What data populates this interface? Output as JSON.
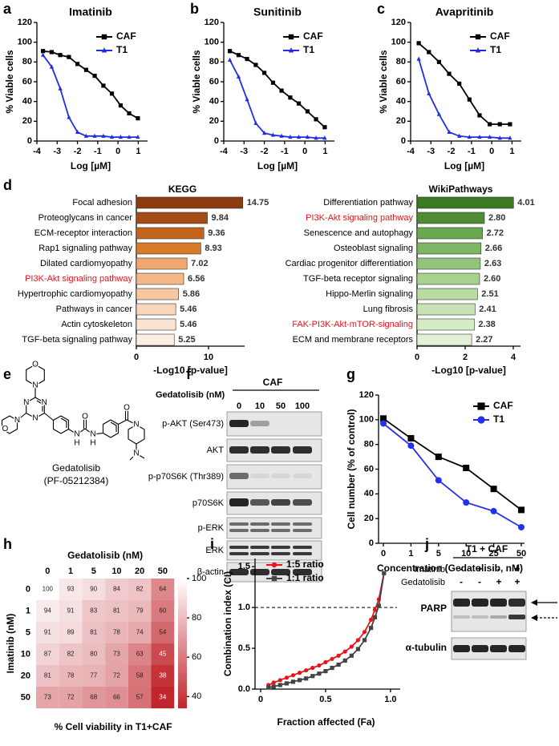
{
  "chart_data": [
    {
      "panel": "a",
      "type": "line",
      "title": "Imatinib",
      "xlabel": "Log [µM]",
      "ylabel": "% Viable cells",
      "x": [
        -3.7,
        -3.27,
        -2.85,
        -2.42,
        -2.0,
        -1.57,
        -1.15,
        -0.72,
        -0.3,
        0.13,
        0.55,
        0.98
      ],
      "xlim": [
        -4,
        1.3
      ],
      "xticks": [
        -4,
        -3,
        -2,
        -1,
        0,
        1
      ],
      "ylim": [
        0,
        120
      ],
      "yticks": [
        0,
        20,
        40,
        60,
        80,
        100,
        120
      ],
      "legend": "upper right",
      "series": [
        {
          "name": "CAF",
          "color": "#000000",
          "marker": "square",
          "values": [
            91,
            90,
            87,
            85,
            78,
            72,
            66,
            56,
            48,
            36,
            28,
            23
          ]
        },
        {
          "name": "T1",
          "color": "#1f2ee6",
          "marker": "triangle",
          "values": [
            87,
            75,
            53,
            24,
            9,
            5,
            5,
            5,
            4,
            4,
            4,
            4
          ]
        }
      ]
    },
    {
      "panel": "b",
      "type": "line",
      "title": "Sunitinib",
      "xlabel": "Log [µM]",
      "ylabel": "% Viable cells",
      "x": [
        -3.7,
        -3.27,
        -2.85,
        -2.42,
        -2.0,
        -1.57,
        -1.15,
        -0.72,
        -0.3,
        0.13,
        0.55,
        0.98
      ],
      "xlim": [
        -4,
        1.3
      ],
      "xticks": [
        -4,
        -3,
        -2,
        -1,
        0,
        1
      ],
      "ylim": [
        0,
        120
      ],
      "yticks": [
        0,
        20,
        40,
        60,
        80,
        100,
        120
      ],
      "legend": "upper right",
      "series": [
        {
          "name": "CAF",
          "color": "#000000",
          "marker": "square",
          "values": [
            91,
            87,
            83,
            77,
            69,
            59,
            51,
            44,
            38,
            30,
            22,
            14
          ]
        },
        {
          "name": "T1",
          "color": "#1f2ee6",
          "marker": "triangle",
          "values": [
            82,
            65,
            42,
            18,
            8,
            6,
            5,
            4,
            4,
            4,
            3,
            3
          ]
        }
      ]
    },
    {
      "panel": "c",
      "type": "line",
      "title": "Avapritinib",
      "xlabel": "Log [µM]",
      "ylabel": "% Viable cells",
      "x": [
        -3.6,
        -3.1,
        -2.6,
        -2.1,
        -1.6,
        -1.1,
        -0.6,
        -0.1,
        0.4,
        0.9
      ],
      "xlim": [
        -4,
        1.3
      ],
      "xticks": [
        -4,
        -3,
        -2,
        -1,
        0,
        1
      ],
      "ylim": [
        0,
        120
      ],
      "yticks": [
        0,
        20,
        40,
        60,
        80,
        100,
        120
      ],
      "legend": "upper right",
      "series": [
        {
          "name": "CAF",
          "color": "#000000",
          "marker": "square",
          "values": [
            99,
            90,
            80,
            68,
            58,
            42,
            26,
            17,
            17,
            17
          ]
        },
        {
          "name": "T1",
          "color": "#1f2ee6",
          "marker": "triangle",
          "values": [
            83,
            48,
            27,
            9,
            5,
            4,
            4,
            4,
            3,
            3
          ]
        }
      ]
    },
    {
      "panel": "d",
      "type": "barh",
      "title": "KEGG",
      "xlabel": "-Log10 [p-value]",
      "categories": [
        "Focal adhesion",
        "Proteoglycans in cancer",
        "ECM-receptor interaction",
        "Rap1 signaling pathway",
        "Dilated cardiomyopathy",
        "PI3K-Akt signaling pathway",
        "Hypertrophic cardiomyopathy",
        "Pathways in cancer",
        "Actin cytoskeleton",
        "TGF-beta signaling pathway"
      ],
      "values": [
        14.75,
        9.84,
        9.36,
        8.93,
        7.02,
        6.56,
        5.86,
        5.46,
        5.46,
        5.25
      ],
      "value_labels": [
        "14.75",
        "9.84",
        "9.36",
        "8.93",
        "7.02",
        "6.56",
        "5.86",
        "5.46",
        "5.46",
        "5.25"
      ],
      "colors": [
        "#8b3d0f",
        "#a34c16",
        "#c3641d",
        "#d77a2a",
        "#f0a870",
        "#f4b788",
        "#f6c8a2",
        "#f8d6bb",
        "#fbe4d2",
        "#fdeee2"
      ],
      "xlim": [
        0,
        15
      ],
      "xticks": [
        0,
        10
      ],
      "highlight": [
        5
      ],
      "highlight_color": "#e8141b"
    },
    {
      "type": "barh",
      "title": "WikiPathways",
      "xlabel": "-Log10 [p-value]",
      "categories": [
        "Differentiation pathway",
        "PI3K-Akt signaling pathway",
        "Senescence and autophagy",
        "Osteoblast signaling",
        "Cardiac progenitor differentiation",
        "TGF-beta receptor signaling",
        "Hippo-Merlin signaling",
        "Lung fibrosis",
        "FAK-PI3K-Akt-mTOR-signaling",
        "ECM and membrane receptors"
      ],
      "values": [
        4.01,
        2.8,
        2.72,
        2.66,
        2.63,
        2.6,
        2.51,
        2.41,
        2.38,
        2.27
      ],
      "value_labels": [
        "4.01",
        "2.80",
        "2.72",
        "2.66",
        "2.63",
        "2.60",
        "2.51",
        "2.41",
        "2.38",
        "2.27"
      ],
      "colors": [
        "#3b7a23",
        "#4f8a34",
        "#6aa84f",
        "#7eb664",
        "#93c47d",
        "#a9d18e",
        "#b8dba0",
        "#c8e3b3",
        "#d5ebc4",
        "#e2f0d8"
      ],
      "xlim": [
        0,
        4.3
      ],
      "xticks": [
        0,
        2,
        4
      ],
      "highlight": [
        1,
        8
      ],
      "highlight_color": "#e8141b"
    },
    {
      "panel": "g",
      "type": "line",
      "xlabel": "Concentration (Gedatolisib, nM)",
      "ylabel": "Cell number (% of control)",
      "categories": [
        "0",
        "1",
        "5",
        "10",
        "25",
        "50"
      ],
      "ylim": [
        0,
        120
      ],
      "yticks": [
        0,
        20,
        40,
        60,
        80,
        100,
        120
      ],
      "legend": "upper right",
      "series": [
        {
          "name": "CAF",
          "color": "#000000",
          "marker": "square",
          "values": [
            101,
            85,
            70,
            61,
            44,
            27
          ]
        },
        {
          "name": "T1",
          "color": "#2330ee",
          "marker": "circle",
          "values": [
            97,
            79,
            51,
            33,
            26,
            13
          ]
        }
      ]
    },
    {
      "panel": "h",
      "type": "heatmap",
      "xlabel": "Gedatolisib (nM)",
      "ylabel": "Imatinib (nM)",
      "caption": "% Cell viability in T1+CAF",
      "columns": [
        "0",
        "1",
        "5",
        "10",
        "20",
        "50"
      ],
      "rows": [
        "0",
        "1",
        "5",
        "10",
        "20",
        "50"
      ],
      "values": [
        [
          100,
          93,
          90,
          84,
          82,
          64
        ],
        [
          94,
          91,
          83,
          81,
          79,
          60
        ],
        [
          91,
          89,
          81,
          78,
          74,
          54
        ],
        [
          87,
          82,
          80,
          73,
          63,
          45
        ],
        [
          81,
          78,
          77,
          72,
          58,
          38
        ],
        [
          73,
          72,
          68,
          66,
          57,
          34
        ]
      ],
      "clim": [
        34,
        100
      ],
      "colorbar_ticks": [
        40,
        60,
        80,
        100
      ],
      "colors": [
        "#c0262d",
        "#ffffff"
      ]
    },
    {
      "panel": "i",
      "type": "line",
      "xlabel": "Fraction affected (Fa)",
      "ylabel": "Combination index (CI)",
      "x": [
        0.06,
        0.1,
        0.15,
        0.2,
        0.25,
        0.3,
        0.35,
        0.4,
        0.45,
        0.5,
        0.55,
        0.6,
        0.65,
        0.7,
        0.75,
        0.8,
        0.85,
        0.88,
        0.91,
        0.95
      ],
      "xlim": [
        0,
        1.05
      ],
      "xticks": [
        0,
        0.5,
        {
          "value": 1,
          "label": "1.0"
        }
      ],
      "ylim": [
        0,
        1.6
      ],
      "yticks": [
        {
          "value": 0,
          "label": "0.0"
        },
        0.5,
        {
          "value": 1,
          "label": "1.0"
        },
        1.5
      ],
      "reference_line": 1,
      "legend": "upper left",
      "series": [
        {
          "name": "1:5 ratio",
          "color": "#e8141b",
          "marker": "circle",
          "values": [
            0.05,
            0.08,
            0.11,
            0.14,
            0.17,
            0.2,
            0.23,
            0.26,
            0.29,
            0.33,
            0.37,
            0.41,
            0.46,
            0.52,
            0.6,
            0.7,
            0.85,
            0.97,
            1.1,
            1.42
          ]
        },
        {
          "name": "1:1 ratio",
          "color": "#444444",
          "marker": "square",
          "values": [
            0.02,
            0.03,
            0.05,
            0.07,
            0.09,
            0.11,
            0.13,
            0.16,
            0.19,
            0.22,
            0.26,
            0.3,
            0.35,
            0.41,
            0.49,
            0.6,
            0.75,
            0.88,
            1.02,
            1.42
          ]
        }
      ]
    }
  ],
  "structure_e": {
    "panel": "e",
    "atoms": [
      "O",
      "N",
      "N",
      "N",
      "N",
      "N",
      "O",
      "N",
      "H",
      "O",
      "N",
      "H",
      "O",
      "N",
      "N"
    ],
    "name": "Gedatolisib",
    "code": "(PF-05212384)"
  },
  "blot_f": {
    "panel": "f",
    "group": "CAF",
    "treatment": "Gedatolisib (nM)",
    "lanes": [
      "0",
      "10",
      "50",
      "100"
    ],
    "rows": [
      "p-AKT (Ser473)",
      "AKT",
      "p-p70S6K (Thr389)",
      "p70S6K",
      "p-ERK",
      "ERK",
      "β-actin"
    ]
  },
  "blot_j": {
    "panel": "j",
    "group": "T1 + CAF",
    "treatments": [
      {
        "name": "Imatinib",
        "signs": [
          "-",
          "+",
          "-",
          "+"
        ]
      },
      {
        "name": "Gedatolisib",
        "signs": [
          "-",
          "-",
          "+",
          "+"
        ]
      }
    ],
    "rows": [
      "PARP",
      "α-tubulin"
    ]
  }
}
